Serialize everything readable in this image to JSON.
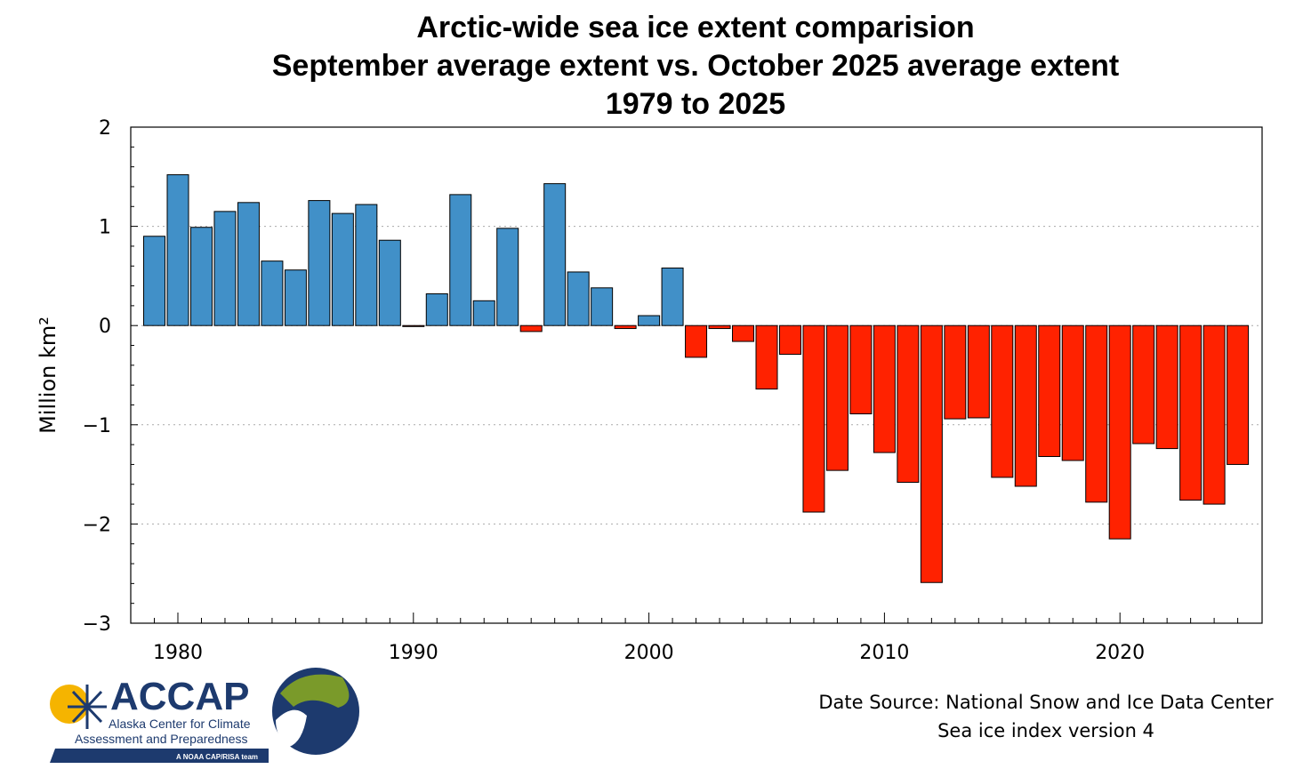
{
  "chart_data": {
    "type": "bar",
    "title": [
      "Arctic-wide sea ice extent comparision",
      "September average extent vs. October 2025 average extent",
      "1979 to 2025"
    ],
    "xlabel": "",
    "ylabel": "Million km²",
    "ylim": [
      -3,
      2
    ],
    "xlim": [
      1978,
      2026
    ],
    "yticks": [
      2,
      1,
      0,
      -1,
      -2,
      -3
    ],
    "ytick_labels": [
      "2",
      "1",
      "0",
      "−1",
      "−2",
      "−3"
    ],
    "xticks": [
      1980,
      1990,
      2000,
      2010,
      2020
    ],
    "xtick_labels": [
      "1980",
      "1990",
      "2000",
      "2010",
      "2020"
    ],
    "grid": "horizontal dotted",
    "x": [
      1979,
      1980,
      1981,
      1982,
      1983,
      1984,
      1985,
      1986,
      1987,
      1988,
      1989,
      1990,
      1991,
      1992,
      1993,
      1994,
      1995,
      1996,
      1997,
      1998,
      1999,
      2000,
      2001,
      2002,
      2003,
      2004,
      2005,
      2006,
      2007,
      2008,
      2009,
      2010,
      2011,
      2012,
      2013,
      2014,
      2015,
      2016,
      2017,
      2018,
      2019,
      2020,
      2021,
      2022,
      2023,
      2024,
      2025
    ],
    "values": [
      0.9,
      1.52,
      0.99,
      1.15,
      1.24,
      0.65,
      0.56,
      1.26,
      1.13,
      1.22,
      0.86,
      -0.01,
      0.32,
      1.32,
      0.25,
      0.98,
      -0.06,
      1.43,
      0.54,
      0.38,
      -0.03,
      0.1,
      0.58,
      -0.32,
      -0.03,
      -0.16,
      -0.64,
      -0.29,
      -1.88,
      -1.46,
      -0.89,
      -1.28,
      -1.58,
      -2.59,
      -0.94,
      -0.93,
      -1.53,
      -1.62,
      -1.32,
      -1.36,
      -1.78,
      -2.15,
      -1.19,
      -1.24,
      -1.76,
      -1.8,
      -1.4
    ],
    "colors": {
      "positive": "#4190c8",
      "negative": "#ff2200"
    }
  },
  "source": [
    "Date Source: National Snow and Ice Data Center",
    "Sea ice index version 4"
  ],
  "logo": {
    "name": "ACCAP",
    "line1": "Alaska Center for Climate",
    "line2": "Assessment and Preparedness",
    "tag": "A NOAA CAP/RISA team"
  }
}
